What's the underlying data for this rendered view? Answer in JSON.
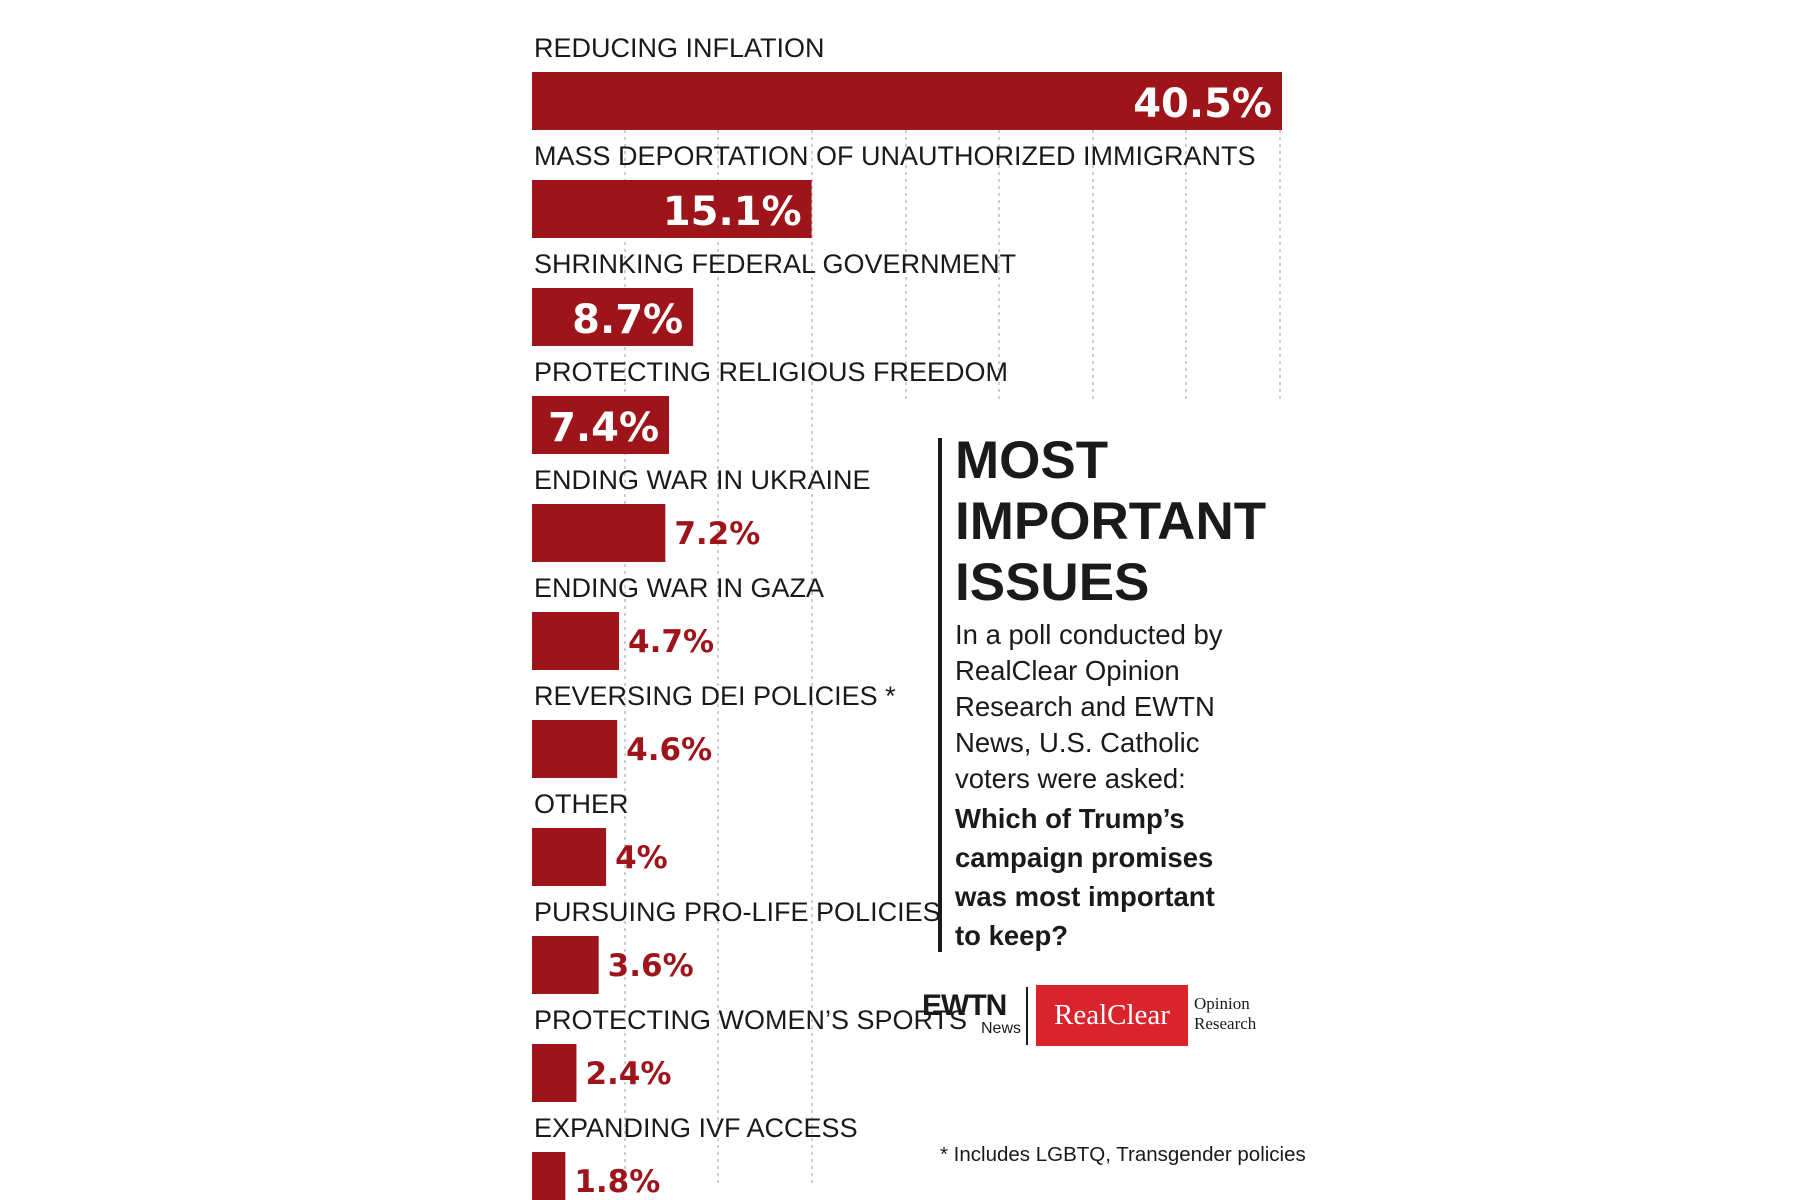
{
  "chart_data": {
    "type": "bar",
    "orientation": "horizontal",
    "title": "MOST IMPORTANT ISSUES",
    "categories": [
      "REDUCING INFLATION",
      "MASS DEPORTATION OF UNAUTHORIZED IMMIGRANTS",
      "SHRINKING FEDERAL GOVERNMENT",
      "PROTECTING RELIGIOUS FREEDOM",
      "ENDING WAR IN UKRAINE",
      "ENDING WAR IN GAZA",
      "REVERSING DEI POLICIES *",
      "OTHER",
      "PURSUING PRO-LIFE POLICIES",
      "PROTECTING WOMEN’S SPORTS",
      "EXPANDING IVF ACCESS"
    ],
    "values": [
      40.5,
      15.1,
      8.7,
      7.4,
      7.2,
      4.7,
      4.6,
      4,
      3.6,
      2.4,
      1.8
    ],
    "value_labels": [
      "40.5%",
      "15.1%",
      "8.7%",
      "7.4%",
      "7.2%",
      "4.7%",
      "4.6%",
      "4%",
      "3.6%",
      "2.4%",
      "1.8%"
    ],
    "xlim": [
      0,
      40.5
    ],
    "grid": true,
    "legend": "none"
  },
  "info": {
    "title_lines": [
      "MOST",
      "IMPORTANT",
      "ISSUES"
    ],
    "subtitle_lines": [
      "In a poll conducted by",
      "RealClear Opinion",
      "Research and EWTN",
      "News, U.S. Catholic",
      "voters were asked:"
    ],
    "question_lines": [
      "Which of Trump’s",
      "campaign promises",
      "was most important",
      "to keep?"
    ]
  },
  "logos": {
    "ewtn": "EWTN",
    "ewtn_sub": "News",
    "realclear": "RealClear",
    "realclear_sub_1": "Opinion",
    "realclear_sub_2": "Research"
  },
  "footnote": "* Includes LGBTQ, Transgender policies",
  "colors": {
    "bar": "#9e141b",
    "grid": "#bdbdbd",
    "text": "#1a1a1a"
  }
}
